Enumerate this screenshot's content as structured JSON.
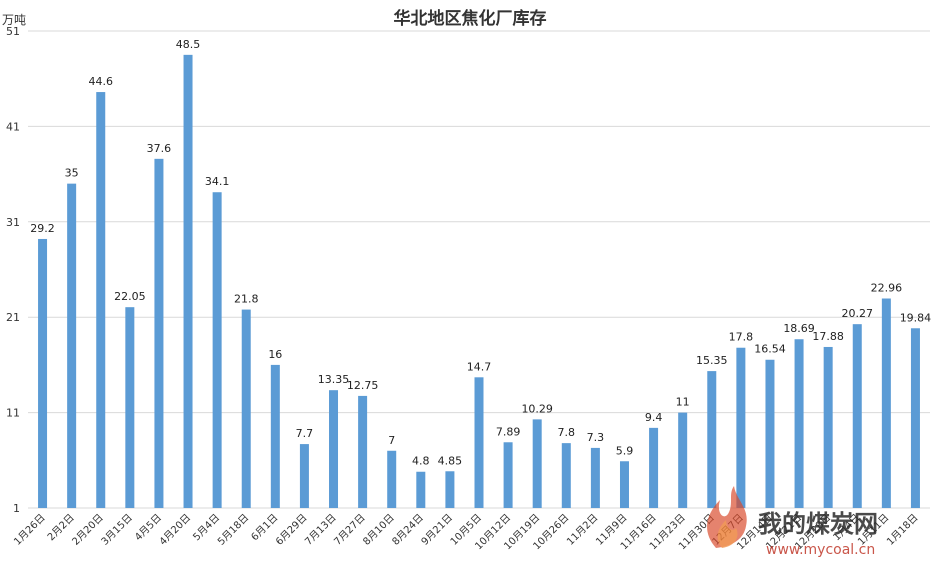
{
  "chart_data": {
    "type": "bar",
    "title": "华北地区焦化厂库存",
    "ylabel": "万吨",
    "ylim": [
      1,
      51
    ],
    "yticks": [
      1,
      11,
      21,
      31,
      41,
      51
    ],
    "grid": true,
    "bar_color": "#5b9bd5",
    "categories": [
      "1月26日",
      "2月2日",
      "2月20日",
      "3月15日",
      "4月5日",
      "4月20日",
      "5月4日",
      "5月18日",
      "6月1日",
      "6月29日",
      "7月13日",
      "7月27日",
      "8月10日",
      "8月24日",
      "9月21日",
      "10月5日",
      "10月12日",
      "10月19日",
      "10月26日",
      "11月2日",
      "11月9日",
      "11月16日",
      "11月23日",
      "11月30日",
      "12月7日",
      "12月14日",
      "12月21日",
      "12月28日",
      "1月4日",
      "1月11日",
      "1月18日"
    ],
    "values": [
      29.2,
      35,
      44.6,
      22.05,
      37.6,
      48.5,
      34.1,
      21.8,
      16,
      7.7,
      13.35,
      12.75,
      7,
      4.8,
      4.85,
      14.7,
      7.89,
      10.29,
      7.8,
      7.3,
      5.9,
      9.4,
      11,
      15.35,
      17.8,
      16.54,
      18.69,
      17.88,
      20.27,
      22.96,
      19.84
    ]
  },
  "watermark": {
    "text": "我的煤炭网",
    "url": "www.mycoal.cn",
    "flame_color": "#d94a2b"
  }
}
